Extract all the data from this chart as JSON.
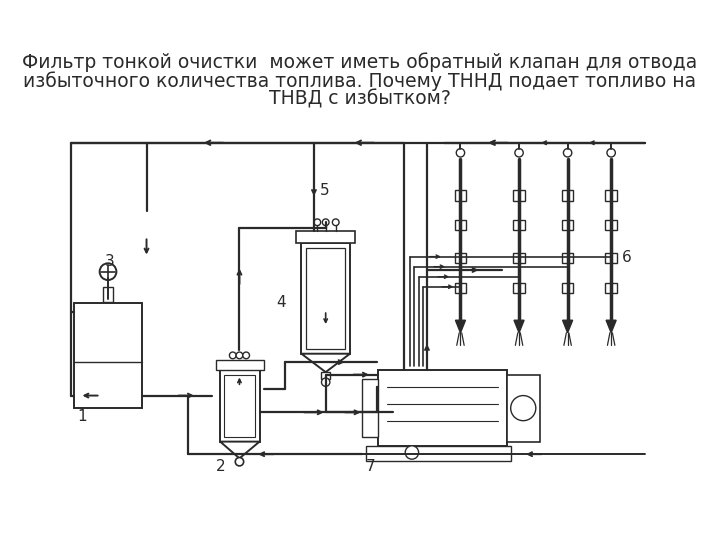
{
  "title_line1": "Фильтр тонкой очистки  может иметь обратный клапан для отвода",
  "title_line2": "избыточного количества топлива. Почему ТННД подает топливо на",
  "title_line3": "ТНВД с избытком?",
  "title_fontsize": 13.5,
  "bg_color": "#ffffff",
  "text_color": "#2a2a2a",
  "fig_width": 7.2,
  "fig_height": 5.4,
  "dpi": 100,
  "image_b64": ""
}
